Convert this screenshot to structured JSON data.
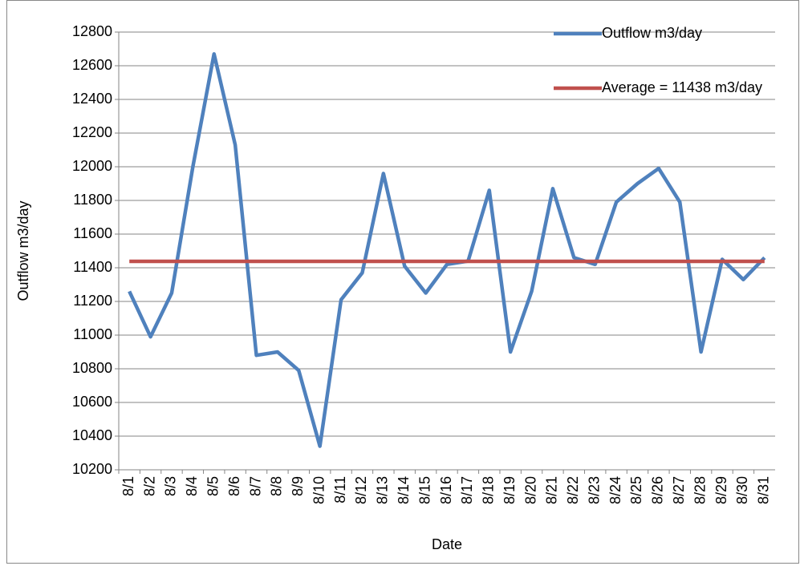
{
  "chart_data": {
    "type": "line",
    "x_label": "Date",
    "y_label": "Outflow m3/day",
    "categories": [
      "8/1",
      "8/2",
      "8/3",
      "8/4",
      "8/5",
      "8/6",
      "8/7",
      "8/8",
      "8/9",
      "8/10",
      "8/11",
      "8/12",
      "8/13",
      "8/14",
      "8/15",
      "8/16",
      "8/17",
      "8/18",
      "8/19",
      "8/20",
      "8/21",
      "8/22",
      "8/23",
      "8/24",
      "8/25",
      "8/26",
      "8/27",
      "8/28",
      "8/29",
      "8/30",
      "8/31"
    ],
    "series": [
      {
        "name": "Outflow m3/day",
        "color": "#4f81bd",
        "values": [
          11260,
          10990,
          11250,
          12000,
          12670,
          12130,
          10880,
          10900,
          10790,
          10340,
          11210,
          11370,
          11960,
          11410,
          11250,
          11420,
          11440,
          11860,
          10900,
          11260,
          11870,
          11460,
          11420,
          11790,
          11900,
          11990,
          11790,
          10900,
          11450,
          11330,
          11460
        ]
      },
      {
        "name": "Average = 11438  m3/day",
        "color": "#c0504d",
        "values": [
          11438,
          11438,
          11438,
          11438,
          11438,
          11438,
          11438,
          11438,
          11438,
          11438,
          11438,
          11438,
          11438,
          11438,
          11438,
          11438,
          11438,
          11438,
          11438,
          11438,
          11438,
          11438,
          11438,
          11438,
          11438,
          11438,
          11438,
          11438,
          11438,
          11438,
          11438
        ]
      }
    ],
    "ylim": [
      10200,
      12800
    ],
    "yticks": [
      10200,
      10400,
      10600,
      10800,
      11000,
      11200,
      11400,
      11600,
      11800,
      12000,
      12200,
      12400,
      12600,
      12800
    ],
    "grid": true,
    "legend": "top-right"
  }
}
